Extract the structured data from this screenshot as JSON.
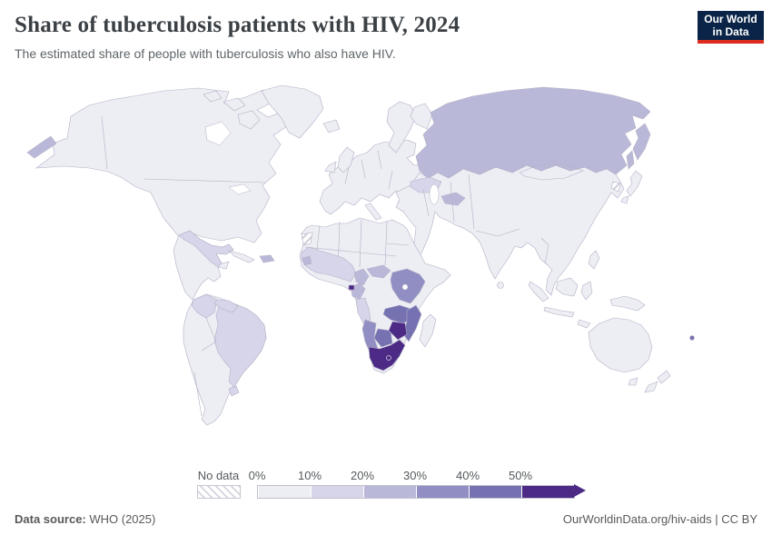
{
  "header": {
    "title": "Share of tuberculosis patients with HIV, 2024",
    "subtitle": "The estimated share of people with tuberculosis who also have HIV.",
    "logo": {
      "line1": "Our World",
      "line2": "in Data",
      "bg_color": "#0a2447",
      "accent_color": "#dc2c20"
    }
  },
  "legend": {
    "no_data_label": "No data",
    "tick_labels": [
      "0%",
      "10%",
      "20%",
      "30%",
      "40%",
      "50%"
    ],
    "colors": [
      "#ededf4",
      "#d6d5e9",
      "#bab8d8",
      "#918ec3",
      "#7672b2",
      "#4c2a85"
    ],
    "no_data_hatch_color": "#d4d4de"
  },
  "map": {
    "border_color": "#b3b1c6",
    "ocean_color": "#ffffff"
  },
  "footer": {
    "source_label": "Data source:",
    "source_value": " WHO (2025)",
    "attribution": "OurWorldinData.org/hiv-aids | CC BY"
  },
  "chart_data": {
    "type": "heatmap",
    "subtype": "world-choropleth",
    "title": "Share of tuberculosis patients with HIV, 2024",
    "year": 2024,
    "unit": "%",
    "legend_position": "bottom",
    "bins": [
      {
        "range": "0-10%",
        "color": "#ededf4"
      },
      {
        "range": "10-20%",
        "color": "#d6d5e9"
      },
      {
        "range": "20-30%",
        "color": "#bab8d8"
      },
      {
        "range": "30-40%",
        "color": "#918ec3"
      },
      {
        "range": "40-50%",
        "color": "#7672b2"
      },
      {
        "range": "50%+",
        "color": "#4c2a85"
      }
    ],
    "regions": [
      {
        "name": "South Africa",
        "value": "50%+"
      },
      {
        "name": "Lesotho",
        "value": "50%+"
      },
      {
        "name": "Eswatini",
        "value": "50%+"
      },
      {
        "name": "Zimbabwe",
        "value": "50%+"
      },
      {
        "name": "Equatorial Guinea",
        "value": "50%+"
      },
      {
        "name": "Mozambique",
        "value": "40-50%"
      },
      {
        "name": "Botswana",
        "value": "40-50%"
      },
      {
        "name": "Zambia",
        "value": "40-50%"
      },
      {
        "name": "Malawi",
        "value": "40-50%"
      },
      {
        "name": "Fiji",
        "value": "40-50%"
      },
      {
        "name": "Namibia",
        "value": "30-40%"
      },
      {
        "name": "Uganda",
        "value": "30-40%"
      },
      {
        "name": "Kenya",
        "value": "30-40%"
      },
      {
        "name": "Tanzania",
        "value": "30-40%"
      },
      {
        "name": "Russia",
        "value": "20-30%"
      },
      {
        "name": "Turkmenistan",
        "value": "20-30%"
      },
      {
        "name": "Central African Republic",
        "value": "20-30%"
      },
      {
        "name": "Congo",
        "value": "20-30%"
      },
      {
        "name": "Gabon",
        "value": "20-30%"
      },
      {
        "name": "Guinea-Bissau",
        "value": "20-30%"
      },
      {
        "name": "Haiti",
        "value": "20-30%"
      },
      {
        "name": "Cameroon",
        "value": "20-30%"
      },
      {
        "name": "Brazil",
        "value": "10-20%"
      },
      {
        "name": "Colombia",
        "value": "10-20%"
      },
      {
        "name": "Venezuela",
        "value": "10-20%"
      },
      {
        "name": "Uruguay",
        "value": "10-20%"
      },
      {
        "name": "Mexico",
        "value": "10-20%"
      },
      {
        "name": "Ukraine",
        "value": "10-20%"
      },
      {
        "name": "Nigeria",
        "value": "10-20%"
      },
      {
        "name": "Ghana",
        "value": "10-20%"
      },
      {
        "name": "Côte d'Ivoire",
        "value": "10-20%"
      },
      {
        "name": "Angola",
        "value": "10-20%"
      },
      {
        "name": "Thailand",
        "value": "10-20%"
      },
      {
        "name": "United States",
        "value": "0-10%"
      },
      {
        "name": "Canada",
        "value": "0-10%"
      },
      {
        "name": "China",
        "value": "0-10%"
      },
      {
        "name": "India",
        "value": "0-10%"
      },
      {
        "name": "Australia",
        "value": "0-10%"
      },
      {
        "name": "Western Europe",
        "value": "0-10%"
      },
      {
        "name": "North Korea",
        "value": "No data"
      },
      {
        "name": "Western Sahara",
        "value": "No data"
      }
    ]
  }
}
